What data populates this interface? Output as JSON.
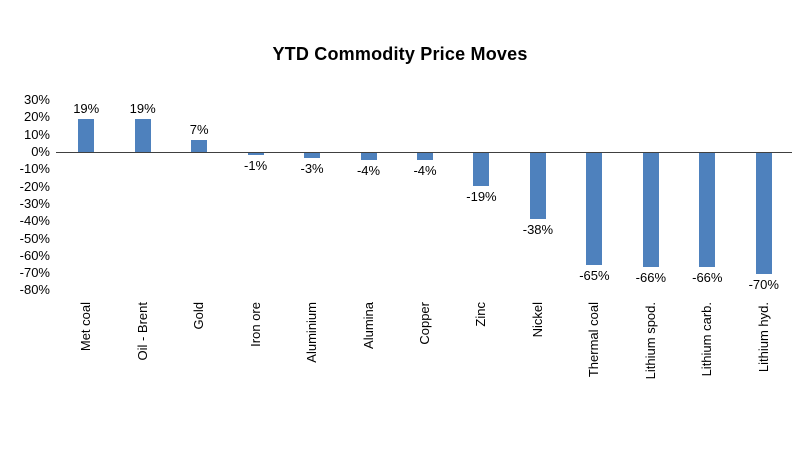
{
  "chart_data": {
    "type": "bar",
    "title": "YTD Commodity Price Moves",
    "xlabel": "",
    "ylabel": "",
    "categories": [
      "Met coal",
      "Oil - Brent",
      "Gold",
      "Iron ore",
      "Aluminium",
      "Alumina",
      "Copper",
      "Zinc",
      "Nickel",
      "Thermal coal",
      "Lithium spod.",
      "Lithium carb.",
      "Lithium hyd."
    ],
    "values": [
      19,
      19,
      7,
      -1,
      -3,
      -4,
      -4,
      -19,
      -38,
      -65,
      -66,
      -66,
      -70
    ],
    "value_labels": [
      "19%",
      "19%",
      "7%",
      "-1%",
      "-3%",
      "-4%",
      "-4%",
      "-19%",
      "-38%",
      "-65%",
      "-66%",
      "-66%",
      "-70%"
    ],
    "ylim": [
      -80,
      30
    ],
    "y_ticks": [
      "30%",
      "20%",
      "10%",
      "0%",
      "-10%",
      "-20%",
      "-30%",
      "-40%",
      "-50%",
      "-60%",
      "-70%",
      "-80%"
    ],
    "y_tick_values": [
      30,
      20,
      10,
      0,
      -10,
      -20,
      -30,
      -40,
      -50,
      -60,
      -70,
      -80
    ],
    "bar_color": "#4E81BD",
    "axis_line_color": "#404040",
    "grid": false,
    "legend": false
  }
}
